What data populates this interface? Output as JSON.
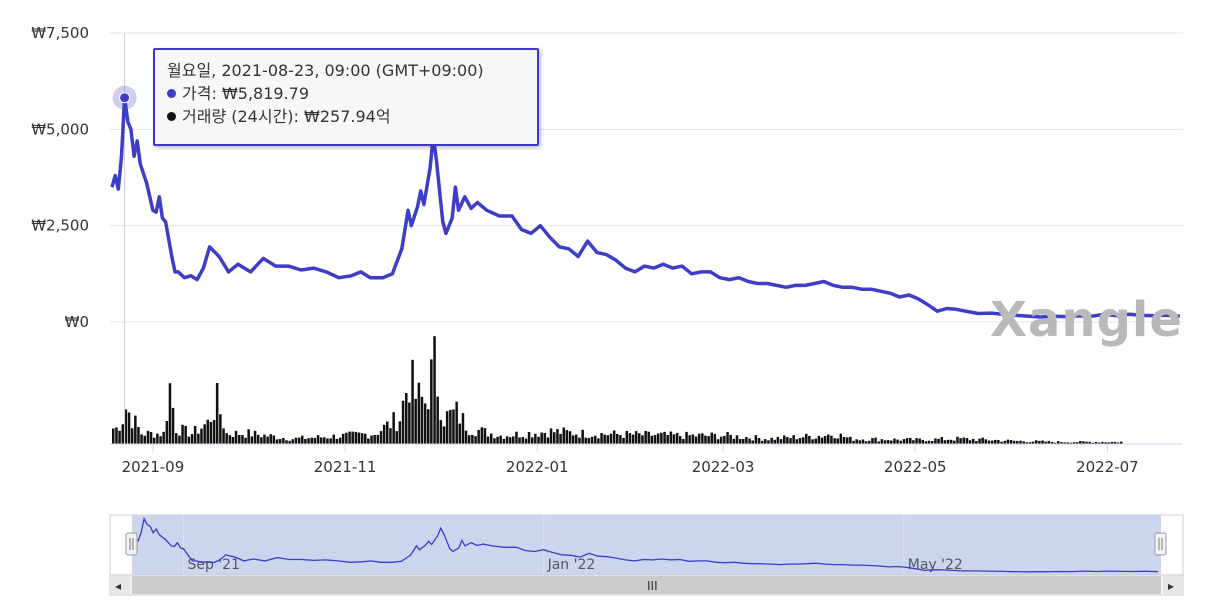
{
  "chart_data": {
    "type": "line",
    "title": "",
    "y_ticks": [
      "₩7,500",
      "₩5,000",
      "₩2,500",
      "₩0"
    ],
    "x_ticks": [
      "2021-09",
      "2021-11",
      "2022-01",
      "2022-03",
      "2022-05",
      "2022-07"
    ],
    "ylim": [
      0,
      7500
    ],
    "grid": true,
    "series": [
      {
        "name": "가격",
        "color": "#3d3dc8",
        "points": [
          [
            "2021-08-19",
            3500
          ],
          [
            "2021-08-20",
            3800
          ],
          [
            "2021-08-21",
            3450
          ],
          [
            "2021-08-22",
            4300
          ],
          [
            "2021-08-23",
            5819.79
          ],
          [
            "2021-08-24",
            5200
          ],
          [
            "2021-08-25",
            5000
          ],
          [
            "2021-08-26",
            4300
          ],
          [
            "2021-08-27",
            4700
          ],
          [
            "2021-08-28",
            4100
          ],
          [
            "2021-08-30",
            3600
          ],
          [
            "2021-09-01",
            2900
          ],
          [
            "2021-09-02",
            2850
          ],
          [
            "2021-09-03",
            3250
          ],
          [
            "2021-09-04",
            2700
          ],
          [
            "2021-09-05",
            2600
          ],
          [
            "2021-09-07",
            1700
          ],
          [
            "2021-09-08",
            1300
          ],
          [
            "2021-09-09",
            1300
          ],
          [
            "2021-09-11",
            1150
          ],
          [
            "2021-09-13",
            1200
          ],
          [
            "2021-09-15",
            1100
          ],
          [
            "2021-09-17",
            1400
          ],
          [
            "2021-09-19",
            1950
          ],
          [
            "2021-09-22",
            1700
          ],
          [
            "2021-09-25",
            1300
          ],
          [
            "2021-09-28",
            1500
          ],
          [
            "2021-10-02",
            1300
          ],
          [
            "2021-10-06",
            1650
          ],
          [
            "2021-10-10",
            1450
          ],
          [
            "2021-10-14",
            1450
          ],
          [
            "2021-10-18",
            1350
          ],
          [
            "2021-10-22",
            1400
          ],
          [
            "2021-10-26",
            1300
          ],
          [
            "2021-10-30",
            1150
          ],
          [
            "2021-11-03",
            1200
          ],
          [
            "2021-11-06",
            1300
          ],
          [
            "2021-11-09",
            1150
          ],
          [
            "2021-11-13",
            1150
          ],
          [
            "2021-11-16",
            1250
          ],
          [
            "2021-11-19",
            1900
          ],
          [
            "2021-11-21",
            2900
          ],
          [
            "2021-11-22",
            2500
          ],
          [
            "2021-11-24",
            3000
          ],
          [
            "2021-11-25",
            3400
          ],
          [
            "2021-11-26",
            3050
          ],
          [
            "2021-11-28",
            4000
          ],
          [
            "2021-11-29",
            4800
          ],
          [
            "2021-11-30",
            4200
          ],
          [
            "2021-12-01",
            3400
          ],
          [
            "2021-12-02",
            2600
          ],
          [
            "2021-12-03",
            2300
          ],
          [
            "2021-12-05",
            2700
          ],
          [
            "2021-12-06",
            3500
          ],
          [
            "2021-12-07",
            2900
          ],
          [
            "2021-12-09",
            3250
          ],
          [
            "2021-12-11",
            2950
          ],
          [
            "2021-12-13",
            3100
          ],
          [
            "2021-12-16",
            2900
          ],
          [
            "2021-12-20",
            2750
          ],
          [
            "2021-12-24",
            2750
          ],
          [
            "2021-12-27",
            2400
          ],
          [
            "2021-12-30",
            2300
          ],
          [
            "2022-01-02",
            2500
          ],
          [
            "2022-01-05",
            2200
          ],
          [
            "2022-01-08",
            1950
          ],
          [
            "2022-01-11",
            1900
          ],
          [
            "2022-01-14",
            1700
          ],
          [
            "2022-01-17",
            2100
          ],
          [
            "2022-01-20",
            1800
          ],
          [
            "2022-01-23",
            1750
          ],
          [
            "2022-01-26",
            1600
          ],
          [
            "2022-01-29",
            1400
          ],
          [
            "2022-02-01",
            1300
          ],
          [
            "2022-02-04",
            1450
          ],
          [
            "2022-02-07",
            1400
          ],
          [
            "2022-02-10",
            1500
          ],
          [
            "2022-02-13",
            1400
          ],
          [
            "2022-02-16",
            1450
          ],
          [
            "2022-02-19",
            1250
          ],
          [
            "2022-02-22",
            1300
          ],
          [
            "2022-02-25",
            1300
          ],
          [
            "2022-02-28",
            1150
          ],
          [
            "2022-03-03",
            1100
          ],
          [
            "2022-03-06",
            1150
          ],
          [
            "2022-03-09",
            1050
          ],
          [
            "2022-03-12",
            1000
          ],
          [
            "2022-03-15",
            1000
          ],
          [
            "2022-03-18",
            950
          ],
          [
            "2022-03-21",
            900
          ],
          [
            "2022-03-24",
            950
          ],
          [
            "2022-03-27",
            950
          ],
          [
            "2022-03-30",
            1000
          ],
          [
            "2022-04-02",
            1050
          ],
          [
            "2022-04-05",
            950
          ],
          [
            "2022-04-08",
            900
          ],
          [
            "2022-04-11",
            900
          ],
          [
            "2022-04-14",
            850
          ],
          [
            "2022-04-17",
            850
          ],
          [
            "2022-04-20",
            800
          ],
          [
            "2022-04-23",
            750
          ],
          [
            "2022-04-26",
            650
          ],
          [
            "2022-04-29",
            700
          ],
          [
            "2022-05-02",
            600
          ],
          [
            "2022-05-05",
            450
          ],
          [
            "2022-05-08",
            280
          ],
          [
            "2022-05-11",
            350
          ],
          [
            "2022-05-14",
            330
          ],
          [
            "2022-05-17",
            280
          ],
          [
            "2022-05-21",
            220
          ],
          [
            "2022-05-25",
            230
          ],
          [
            "2022-05-29",
            200
          ],
          [
            "2022-06-02",
            170
          ],
          [
            "2022-06-06",
            150
          ],
          [
            "2022-06-10",
            130
          ],
          [
            "2022-06-14",
            150
          ],
          [
            "2022-06-18",
            140
          ],
          [
            "2022-06-22",
            160
          ],
          [
            "2022-06-26",
            150
          ],
          [
            "2022-06-30",
            200
          ],
          [
            "2022-07-04",
            160
          ],
          [
            "2022-07-08",
            200
          ],
          [
            "2022-07-12",
            170
          ],
          [
            "2022-07-16",
            160
          ],
          [
            "2022-07-20",
            180
          ],
          [
            "2022-07-24",
            150
          ]
        ]
      },
      {
        "name": "거래량 (24시간)",
        "color": "#111111",
        "volume_points": [
          [
            "2021-08-20",
            15
          ],
          [
            "2021-08-22",
            25
          ],
          [
            "2021-08-23",
            35
          ],
          [
            "2021-08-25",
            25
          ],
          [
            "2021-08-28",
            10
          ],
          [
            "2021-09-01",
            10
          ],
          [
            "2021-09-04",
            10
          ],
          [
            "2021-09-06",
            55
          ],
          [
            "2021-09-08",
            15
          ],
          [
            "2021-09-13",
            10
          ],
          [
            "2021-09-18",
            20
          ],
          [
            "2021-09-21",
            40
          ],
          [
            "2021-09-24",
            10
          ],
          [
            "2021-10-01",
            10
          ],
          [
            "2021-10-15",
            5
          ],
          [
            "2021-11-01",
            8
          ],
          [
            "2021-11-10",
            10
          ],
          [
            "2021-11-18",
            25
          ],
          [
            "2021-11-21",
            65
          ],
          [
            "2021-11-23",
            45
          ],
          [
            "2021-11-26",
            40
          ],
          [
            "2021-11-29",
            75
          ],
          [
            "2021-12-02",
            25
          ],
          [
            "2021-12-06",
            30
          ],
          [
            "2021-12-10",
            15
          ],
          [
            "2021-12-20",
            8
          ],
          [
            "2022-01-05",
            12
          ],
          [
            "2022-01-15",
            10
          ],
          [
            "2022-02-15",
            8
          ],
          [
            "2022-02-25",
            8
          ],
          [
            "2022-03-01",
            8
          ],
          [
            "2022-03-15",
            5
          ],
          [
            "2022-04-01",
            8
          ],
          [
            "2022-04-05",
            10
          ],
          [
            "2022-04-10",
            5
          ],
          [
            "2022-05-01",
            4
          ],
          [
            "2022-05-15",
            5
          ],
          [
            "2022-06-01",
            3
          ],
          [
            "2022-06-15",
            2
          ],
          [
            "2022-07-04",
            2
          ]
        ]
      }
    ],
    "tooltip": {
      "header": "월요일, 2021-08-23, 09:00 (GMT+09:00)",
      "price_label": "가격",
      "price_value": "₩5,819.79",
      "volume_label": "거래량 (24시간)",
      "volume_value": "₩257.94억"
    },
    "navigator_ticks": [
      "Sep '21",
      "Jan '22",
      "May '22"
    ]
  },
  "watermark": "Xangle",
  "scrollbar": {
    "left_arrow": "◂",
    "right_arrow": "▸",
    "grip": "III"
  }
}
